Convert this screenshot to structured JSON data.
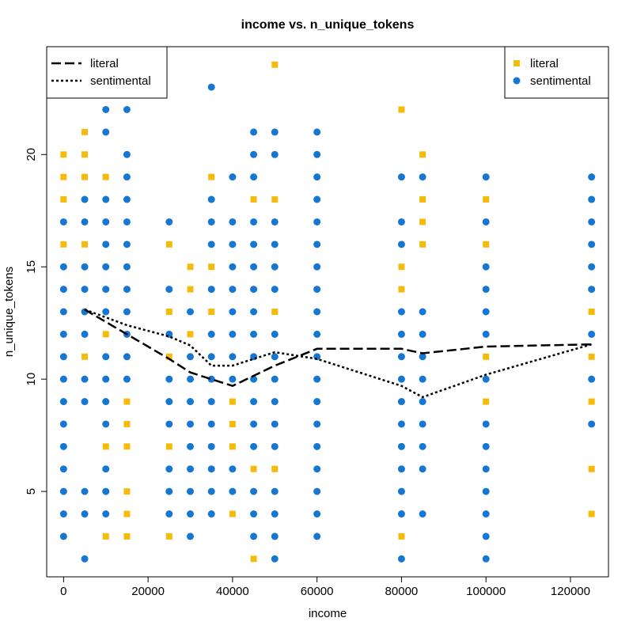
{
  "chart_data": {
    "type": "scatter",
    "title": "income vs. n_unique_tokens",
    "xlabel": "income",
    "ylabel": "n_unique_tokens",
    "xlim": [
      -4000,
      129000
    ],
    "ylim": [
      1.2,
      24.8
    ],
    "x_ticks": [
      0,
      20000,
      40000,
      60000,
      80000,
      100000,
      120000
    ],
    "x_tick_labels": [
      "0",
      "20000",
      "40000",
      "60000",
      "80000",
      "100000",
      "120000"
    ],
    "y_ticks": [
      5,
      10,
      15,
      20
    ],
    "y_tick_labels": [
      "5",
      "10",
      "15",
      "20"
    ],
    "grid": false,
    "colors": {
      "literal": "#F5BB0C",
      "sentimental": "#1577D3"
    },
    "legend_lines": {
      "position": "top-left",
      "entries": [
        {
          "label": "literal",
          "style": "long-dash"
        },
        {
          "label": "sentimental",
          "style": "dotted"
        }
      ]
    },
    "legend_points": {
      "position": "top-right",
      "entries": [
        {
          "label": "literal",
          "marker": "square"
        },
        {
          "label": "sentimental",
          "marker": "circle"
        }
      ]
    },
    "series": [
      {
        "name": "literal",
        "marker": "square",
        "points": [
          [
            0,
            20
          ],
          [
            0,
            19
          ],
          [
            0,
            18
          ],
          [
            0,
            16
          ],
          [
            5000,
            21
          ],
          [
            5000,
            20
          ],
          [
            5000,
            19
          ],
          [
            5000,
            16
          ],
          [
            5000,
            11
          ],
          [
            10000,
            19
          ],
          [
            10000,
            12
          ],
          [
            10000,
            7
          ],
          [
            10000,
            3
          ],
          [
            15000,
            9
          ],
          [
            15000,
            8
          ],
          [
            15000,
            7
          ],
          [
            15000,
            5
          ],
          [
            15000,
            4
          ],
          [
            15000,
            3
          ],
          [
            25000,
            16
          ],
          [
            25000,
            13
          ],
          [
            25000,
            11
          ],
          [
            25000,
            7
          ],
          [
            25000,
            3
          ],
          [
            30000,
            15
          ],
          [
            30000,
            14
          ],
          [
            30000,
            12
          ],
          [
            35000,
            19
          ],
          [
            35000,
            15
          ],
          [
            35000,
            13
          ],
          [
            40000,
            9
          ],
          [
            40000,
            8
          ],
          [
            40000,
            7
          ],
          [
            40000,
            4
          ],
          [
            45000,
            18
          ],
          [
            45000,
            6
          ],
          [
            45000,
            2
          ],
          [
            50000,
            24
          ],
          [
            50000,
            18
          ],
          [
            50000,
            13
          ],
          [
            50000,
            6
          ],
          [
            80000,
            22
          ],
          [
            80000,
            15
          ],
          [
            80000,
            14
          ],
          [
            80000,
            3
          ],
          [
            85000,
            20
          ],
          [
            85000,
            18
          ],
          [
            85000,
            17
          ],
          [
            85000,
            16
          ],
          [
            100000,
            18
          ],
          [
            100000,
            16
          ],
          [
            100000,
            11
          ],
          [
            100000,
            9
          ],
          [
            125000,
            13
          ],
          [
            125000,
            11
          ],
          [
            125000,
            9
          ],
          [
            125000,
            6
          ],
          [
            125000,
            4
          ]
        ]
      },
      {
        "name": "sentimental",
        "marker": "circle",
        "points": [
          [
            0,
            17
          ],
          [
            0,
            15
          ],
          [
            0,
            14
          ],
          [
            0,
            13
          ],
          [
            0,
            12
          ],
          [
            0,
            11
          ],
          [
            0,
            10
          ],
          [
            0,
            9
          ],
          [
            0,
            8
          ],
          [
            0,
            7
          ],
          [
            0,
            6
          ],
          [
            0,
            5
          ],
          [
            0,
            4
          ],
          [
            0,
            3
          ],
          [
            5000,
            18
          ],
          [
            5000,
            17
          ],
          [
            5000,
            15
          ],
          [
            5000,
            14
          ],
          [
            5000,
            13
          ],
          [
            5000,
            12
          ],
          [
            5000,
            10
          ],
          [
            5000,
            9
          ],
          [
            5000,
            5
          ],
          [
            5000,
            4
          ],
          [
            5000,
            2
          ],
          [
            10000,
            22
          ],
          [
            10000,
            21
          ],
          [
            10000,
            18
          ],
          [
            10000,
            17
          ],
          [
            10000,
            16
          ],
          [
            10000,
            15
          ],
          [
            10000,
            14
          ],
          [
            10000,
            13
          ],
          [
            10000,
            11
          ],
          [
            10000,
            10
          ],
          [
            10000,
            9
          ],
          [
            10000,
            8
          ],
          [
            10000,
            6
          ],
          [
            10000,
            5
          ],
          [
            10000,
            4
          ],
          [
            15000,
            22
          ],
          [
            15000,
            20
          ],
          [
            15000,
            19
          ],
          [
            15000,
            18
          ],
          [
            15000,
            17
          ],
          [
            15000,
            16
          ],
          [
            15000,
            15
          ],
          [
            15000,
            14
          ],
          [
            15000,
            13
          ],
          [
            15000,
            12
          ],
          [
            15000,
            11
          ],
          [
            15000,
            10
          ],
          [
            25000,
            17
          ],
          [
            25000,
            14
          ],
          [
            25000,
            12
          ],
          [
            25000,
            10
          ],
          [
            25000,
            9
          ],
          [
            25000,
            8
          ],
          [
            25000,
            6
          ],
          [
            25000,
            5
          ],
          [
            25000,
            4
          ],
          [
            30000,
            13
          ],
          [
            30000,
            11
          ],
          [
            30000,
            10
          ],
          [
            30000,
            9
          ],
          [
            30000,
            8
          ],
          [
            30000,
            7
          ],
          [
            30000,
            6
          ],
          [
            30000,
            5
          ],
          [
            30000,
            4
          ],
          [
            30000,
            3
          ],
          [
            35000,
            23
          ],
          [
            35000,
            18
          ],
          [
            35000,
            17
          ],
          [
            35000,
            16
          ],
          [
            35000,
            14
          ],
          [
            35000,
            12
          ],
          [
            35000,
            11
          ],
          [
            35000,
            10
          ],
          [
            35000,
            9
          ],
          [
            35000,
            8
          ],
          [
            35000,
            7
          ],
          [
            35000,
            6
          ],
          [
            35000,
            5
          ],
          [
            35000,
            4
          ],
          [
            40000,
            19
          ],
          [
            40000,
            17
          ],
          [
            40000,
            16
          ],
          [
            40000,
            15
          ],
          [
            40000,
            14
          ],
          [
            40000,
            13
          ],
          [
            40000,
            12
          ],
          [
            40000,
            11
          ],
          [
            40000,
            10
          ],
          [
            40000,
            6
          ],
          [
            40000,
            5
          ],
          [
            45000,
            21
          ],
          [
            45000,
            20
          ],
          [
            45000,
            19
          ],
          [
            45000,
            17
          ],
          [
            45000,
            16
          ],
          [
            45000,
            15
          ],
          [
            45000,
            14
          ],
          [
            45000,
            13
          ],
          [
            45000,
            12
          ],
          [
            45000,
            11
          ],
          [
            45000,
            10
          ],
          [
            45000,
            9
          ],
          [
            45000,
            8
          ],
          [
            45000,
            7
          ],
          [
            45000,
            5
          ],
          [
            45000,
            4
          ],
          [
            45000,
            3
          ],
          [
            50000,
            21
          ],
          [
            50000,
            20
          ],
          [
            50000,
            17
          ],
          [
            50000,
            16
          ],
          [
            50000,
            15
          ],
          [
            50000,
            14
          ],
          [
            50000,
            12
          ],
          [
            50000,
            11
          ],
          [
            50000,
            10
          ],
          [
            50000,
            9
          ],
          [
            50000,
            8
          ],
          [
            50000,
            7
          ],
          [
            50000,
            5
          ],
          [
            50000,
            4
          ],
          [
            50000,
            3
          ],
          [
            50000,
            2
          ],
          [
            60000,
            21
          ],
          [
            60000,
            20
          ],
          [
            60000,
            19
          ],
          [
            60000,
            18
          ],
          [
            60000,
            17
          ],
          [
            60000,
            16
          ],
          [
            60000,
            15
          ],
          [
            60000,
            14
          ],
          [
            60000,
            13
          ],
          [
            60000,
            12
          ],
          [
            60000,
            11
          ],
          [
            60000,
            10
          ],
          [
            60000,
            9
          ],
          [
            60000,
            8
          ],
          [
            60000,
            7
          ],
          [
            60000,
            6
          ],
          [
            60000,
            5
          ],
          [
            60000,
            4
          ],
          [
            60000,
            3
          ],
          [
            80000,
            19
          ],
          [
            80000,
            17
          ],
          [
            80000,
            16
          ],
          [
            80000,
            13
          ],
          [
            80000,
            12
          ],
          [
            80000,
            11
          ],
          [
            80000,
            10
          ],
          [
            80000,
            9
          ],
          [
            80000,
            8
          ],
          [
            80000,
            7
          ],
          [
            80000,
            6
          ],
          [
            80000,
            5
          ],
          [
            80000,
            4
          ],
          [
            80000,
            2
          ],
          [
            85000,
            19
          ],
          [
            85000,
            13
          ],
          [
            85000,
            12
          ],
          [
            85000,
            11
          ],
          [
            85000,
            10
          ],
          [
            85000,
            9
          ],
          [
            85000,
            8
          ],
          [
            85000,
            7
          ],
          [
            85000,
            6
          ],
          [
            85000,
            4
          ],
          [
            100000,
            19
          ],
          [
            100000,
            17
          ],
          [
            100000,
            15
          ],
          [
            100000,
            14
          ],
          [
            100000,
            13
          ],
          [
            100000,
            12
          ],
          [
            100000,
            10
          ],
          [
            100000,
            8
          ],
          [
            100000,
            7
          ],
          [
            100000,
            6
          ],
          [
            100000,
            5
          ],
          [
            100000,
            4
          ],
          [
            100000,
            3
          ],
          [
            100000,
            2
          ],
          [
            125000,
            19
          ],
          [
            125000,
            18
          ],
          [
            125000,
            17
          ],
          [
            125000,
            16
          ],
          [
            125000,
            15
          ],
          [
            125000,
            14
          ],
          [
            125000,
            12
          ],
          [
            125000,
            10
          ],
          [
            125000,
            8
          ]
        ]
      }
    ],
    "lines": [
      {
        "name": "literal",
        "style": "long-dash",
        "points": [
          [
            5000,
            13.1
          ],
          [
            15000,
            12.0
          ],
          [
            25000,
            10.9
          ],
          [
            30000,
            10.3
          ],
          [
            40000,
            9.7
          ],
          [
            50000,
            10.6
          ],
          [
            60000,
            11.35
          ],
          [
            80000,
            11.35
          ],
          [
            85000,
            11.15
          ],
          [
            100000,
            11.45
          ],
          [
            125000,
            11.55
          ]
        ]
      },
      {
        "name": "sentimental",
        "style": "dotted",
        "points": [
          [
            5000,
            13.1
          ],
          [
            15000,
            12.4
          ],
          [
            25000,
            11.9
          ],
          [
            30000,
            11.5
          ],
          [
            35000,
            10.6
          ],
          [
            40000,
            10.6
          ],
          [
            50000,
            11.2
          ],
          [
            60000,
            10.9
          ],
          [
            80000,
            9.7
          ],
          [
            85000,
            9.2
          ],
          [
            100000,
            10.2
          ],
          [
            125000,
            11.55
          ]
        ]
      }
    ]
  }
}
